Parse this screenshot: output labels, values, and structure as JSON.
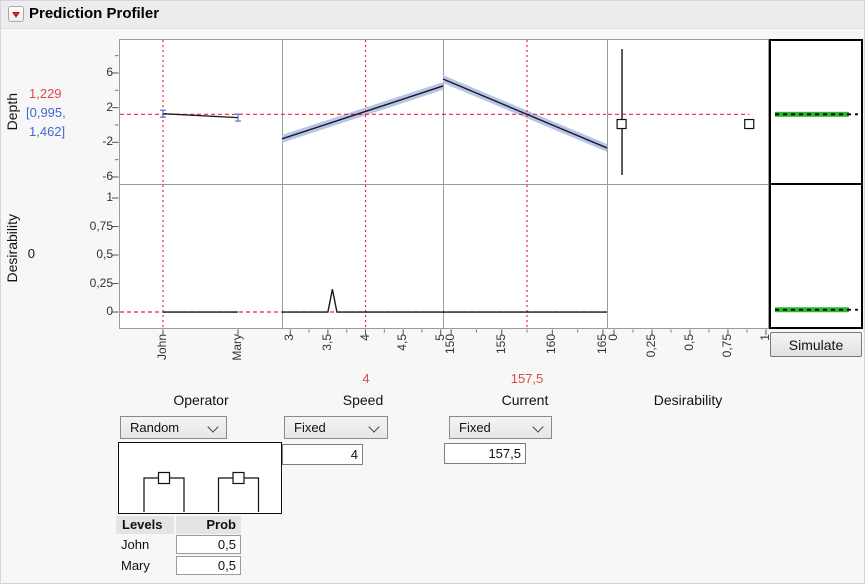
{
  "title": "Prediction Profiler",
  "simulate_button_label": "Simulate",
  "responses": {
    "depth": {
      "label": "Depth",
      "prediction": "1,229",
      "ci_line1": "[0,995,",
      "ci_line2": "1,462]"
    },
    "desirability": {
      "label": "Desirability",
      "current": "0"
    }
  },
  "factor_row": {
    "operator": {
      "label": "Operator",
      "mode": "Random"
    },
    "speed": {
      "label": "Speed",
      "mode": "Fixed",
      "value": "4",
      "axis_value_label": "4"
    },
    "current": {
      "label": "Current",
      "mode": "Fixed",
      "value": "157,5",
      "axis_value_label": "157,5"
    },
    "desirability": {
      "label": "Desirability"
    }
  },
  "levels_table": {
    "header_levels": "Levels",
    "header_prob": "Prob",
    "rows": [
      {
        "level": "John",
        "prob": "0,5"
      },
      {
        "level": "Mary",
        "prob": "0,5"
      }
    ]
  },
  "colors": {
    "crosshair_red": "#e8254a",
    "value_red": "#d94a4a",
    "ci_blue_text": "#4169cf",
    "band_blue": "#b7c5ea",
    "trace_black": "#1a1a1a",
    "sim_green": "#2db52d"
  },
  "chart_data": {
    "type": "line",
    "description": "JMP Prediction Profiler: rows are responses (Depth, Desirability), columns are factors (Operator, Speed, Current, Desirability) plus a simulator column with green markers",
    "rows": [
      {
        "id": "depth",
        "label": "Depth",
        "ylim": [
          -6.81,
          9.92
        ],
        "ytick_labels": [
          "6",
          "2",
          "-2",
          "-6"
        ],
        "ytick_values": [
          6,
          2,
          -2,
          -6
        ],
        "yminor": [
          8,
          4,
          0,
          -4
        ],
        "current_value": 1.229,
        "ci": [
          0.995,
          1.462
        ]
      },
      {
        "id": "desirability",
        "label": "Desirability",
        "ylim": [
          -0.149,
          1.123
        ],
        "ytick_labels": [
          "1",
          "0,75",
          "0,5",
          "0,25",
          "0"
        ],
        "ytick_values": [
          1,
          0.75,
          0.5,
          0.25,
          0
        ],
        "yminor": [],
        "current_value": 0
      }
    ],
    "columns": [
      {
        "id": "operator",
        "label": "Operator",
        "xlim": [
          0,
          1
        ],
        "xtick_labels": [
          "John",
          "Mary"
        ],
        "xtick_values": [
          0.27,
          0.73
        ],
        "xminor": [],
        "current": 0.27,
        "depth_trace": {
          "x": [
            0.27,
            0.73
          ],
          "y": [
            1.3,
            0.85
          ],
          "error": 0.4
        },
        "desirability_trace": {
          "x": [
            0.27,
            0.73
          ],
          "y": [
            0,
            0
          ]
        }
      },
      {
        "id": "speed",
        "label": "Speed",
        "xlim": [
          2.89,
          5.03
        ],
        "xtick_labels": [
          "3",
          "3,5",
          "4",
          "4,5",
          "5"
        ],
        "xtick_values": [
          3,
          3.5,
          4,
          4.5,
          5
        ],
        "xminor": [
          3.25,
          3.75,
          4.25,
          4.75
        ],
        "current": 4,
        "depth_trace": {
          "x": [
            2.89,
            5.03
          ],
          "y": [
            -1.6,
            4.5
          ],
          "band": 0.45
        },
        "desirability_trace": {
          "x": [
            2.89,
            3.5,
            3.56,
            3.62,
            5.03
          ],
          "y": [
            0,
            0,
            0.2,
            0,
            0
          ]
        }
      },
      {
        "id": "current",
        "label": "Current",
        "xlim": [
          149.2,
          165.4
        ],
        "xtick_labels": [
          "150",
          "155",
          "160",
          "165"
        ],
        "xtick_values": [
          150,
          155,
          160,
          165
        ],
        "xminor": [
          152.5,
          157.5,
          162.5
        ],
        "current": 157.5,
        "depth_trace": {
          "x": [
            149.2,
            165.4
          ],
          "y": [
            5.3,
            -2.65
          ],
          "band": 0.45
        },
        "desirability_trace": {
          "x": [
            149.2,
            165.4
          ],
          "y": [
            0,
            0
          ]
        }
      },
      {
        "id": "desirability",
        "label": "Desirability",
        "xlim": [
          -0.046,
          1.02
        ],
        "xtick_labels": [
          "0",
          "0,25",
          "0,5",
          "0,75",
          "1"
        ],
        "xtick_values": [
          0,
          0.25,
          0.5,
          0.75,
          1
        ],
        "xminor": [
          0.125,
          0.375,
          0.625,
          0.875
        ],
        "depth_desirability_function": {
          "vertical_x": 0.053,
          "handles_x": [
            0.05,
            0.89
          ],
          "handles_y": 0.11,
          "red_line_end": 0.89
        }
      }
    ],
    "simulator_column": {
      "depth_marker": 1.229,
      "desirability_marker": 0.02
    },
    "operator_distribution": {
      "type": "bar",
      "categories": [
        "John",
        "Mary"
      ],
      "values": [
        0.5,
        0.5
      ]
    }
  }
}
